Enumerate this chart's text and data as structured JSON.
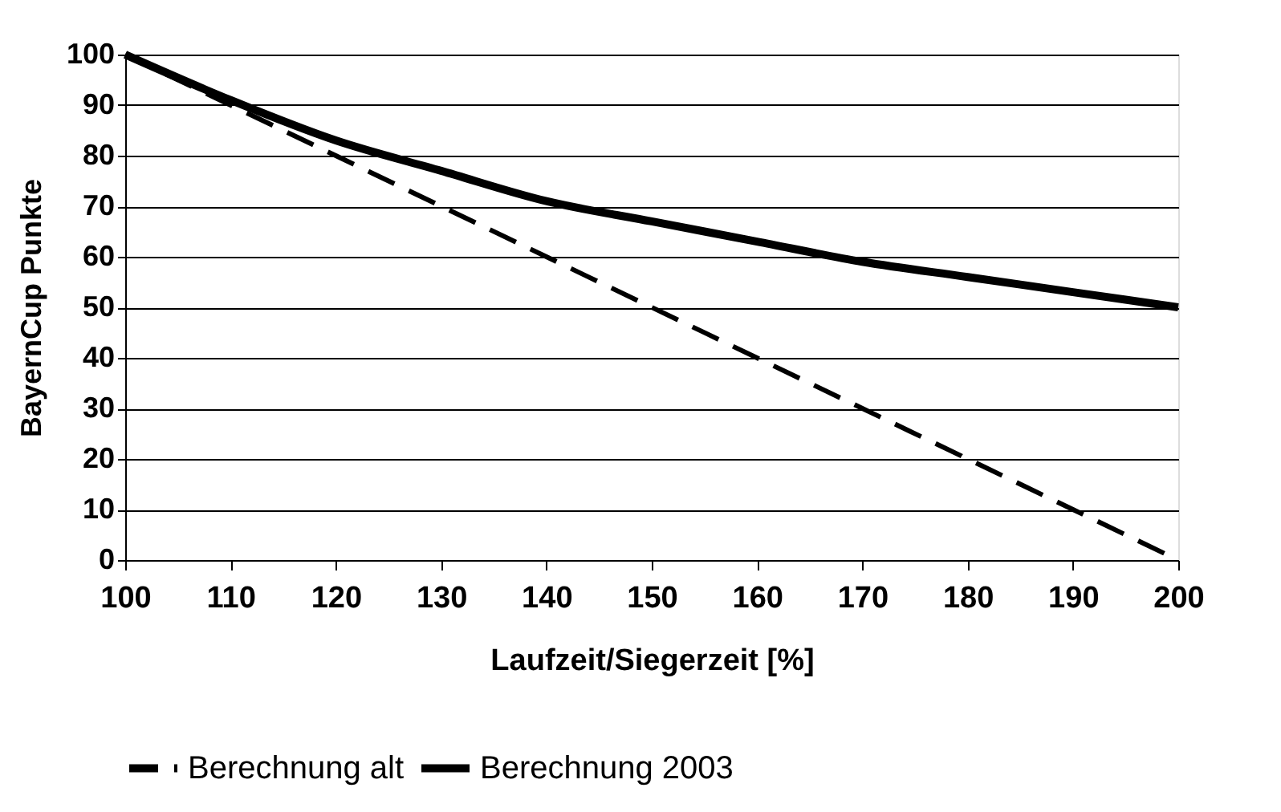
{
  "chart_data": {
    "type": "line",
    "xlabel": "Laufzeit/Siegerzeit [%]",
    "ylabel": "BayernCup Punkte",
    "x": [
      100,
      110,
      120,
      130,
      140,
      150,
      160,
      170,
      180,
      190,
      200
    ],
    "series": [
      {
        "name": "Berechnung alt",
        "color": "#000000",
        "line_style": "dashed",
        "values": [
          100,
          90,
          80,
          70,
          60,
          50,
          40,
          30,
          20,
          10,
          0
        ]
      },
      {
        "name": "Berechnung 2003",
        "color": "#000000",
        "line_style": "solid",
        "values": [
          100,
          91,
          83,
          77,
          71,
          67,
          63,
          59,
          56,
          53,
          50
        ]
      }
    ],
    "xlim": [
      100,
      200
    ],
    "xticks": [
      100,
      110,
      120,
      130,
      140,
      150,
      160,
      170,
      180,
      190,
      200
    ],
    "ylim": [
      0,
      100
    ],
    "yticks": [
      0,
      10,
      20,
      30,
      40,
      50,
      60,
      70,
      80,
      90,
      100
    ],
    "grid": "y",
    "legend": "bottom",
    "marker": "none"
  }
}
